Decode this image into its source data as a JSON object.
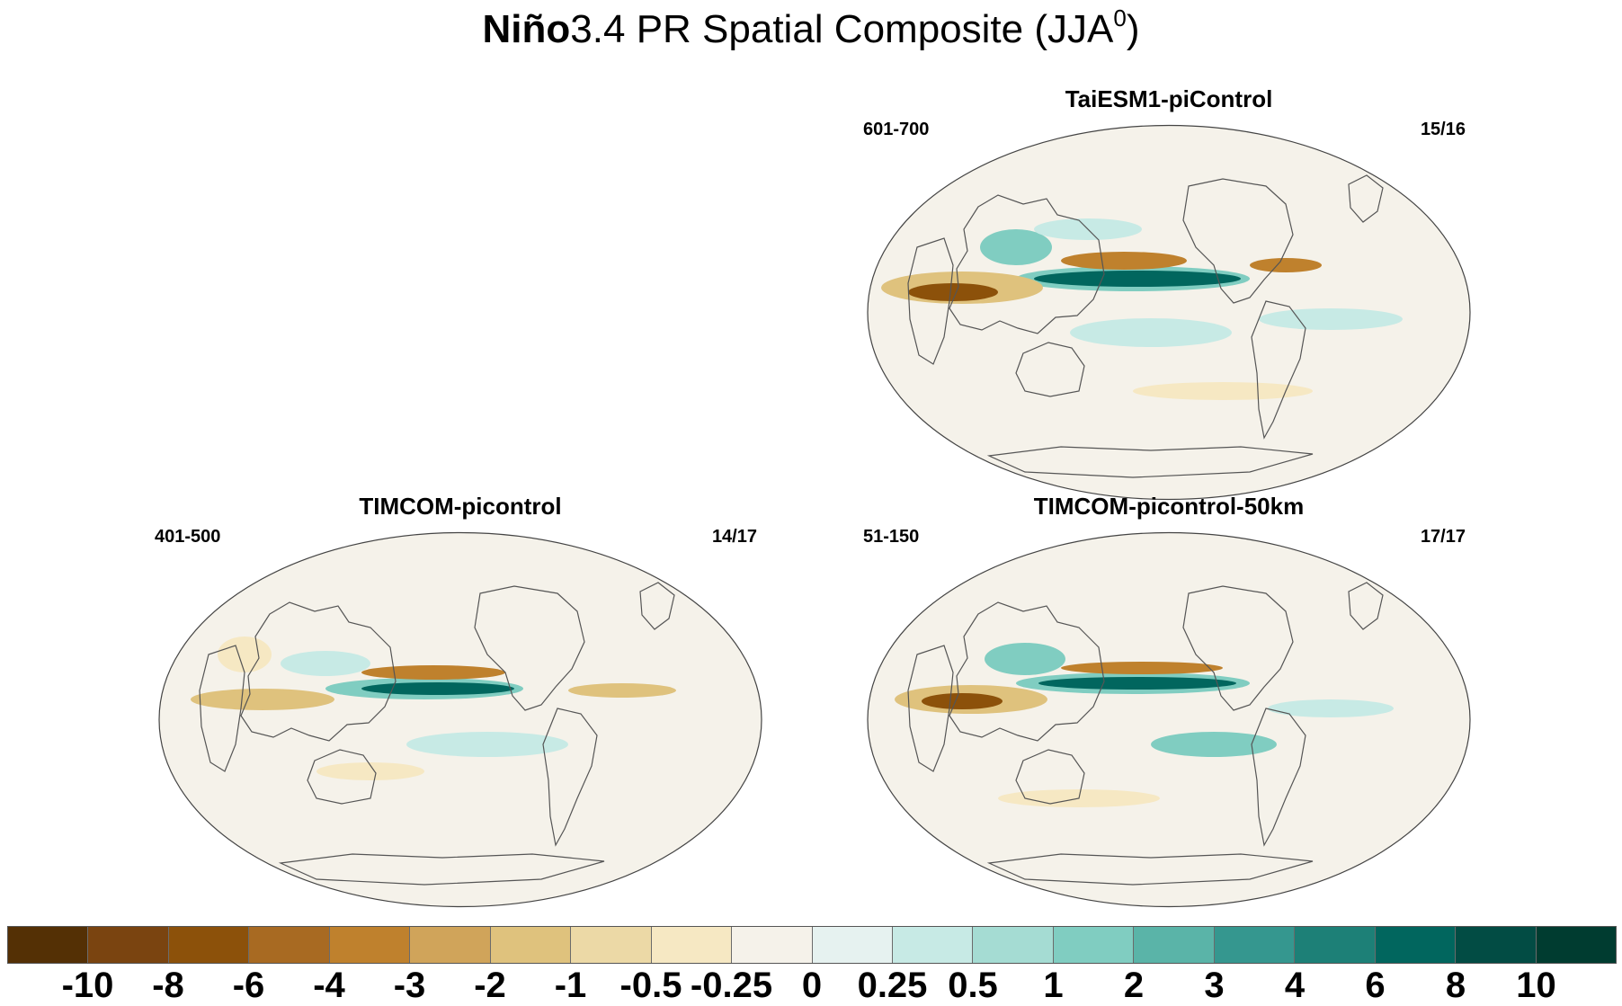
{
  "title": {
    "bold_part": "Niño",
    "rest": "3.4 PR Spatial Composite (JJA",
    "superscript": "0",
    "close": ")"
  },
  "panels": [
    {
      "id": "taiesm",
      "title": "TaiESM1-piControl",
      "years": "601-700",
      "count": "15/16"
    },
    {
      "id": "timcom",
      "title": "TIMCOM-picontrol",
      "years": "401-500",
      "count": "14/17"
    },
    {
      "id": "timcom50",
      "title": "TIMCOM-picontrol-50km",
      "years": "51-150",
      "count": "17/17"
    }
  ],
  "colorbar": {
    "labels": [
      "-10",
      "-8",
      "-6",
      "-4",
      "-3",
      "-2",
      "-1",
      "-0.5",
      "-0.25",
      "0",
      "0.25",
      "0.5",
      "1",
      "2",
      "3",
      "4",
      "6",
      "8",
      "10"
    ],
    "colors": [
      "#543005",
      "#7a4410",
      "#8c510a",
      "#a86a22",
      "#bf812d",
      "#d0a45a",
      "#dfc27d",
      "#ecd9a6",
      "#f6e8c3",
      "#f5f2ea",
      "#e6f2f0",
      "#c7eae5",
      "#a5dcd3",
      "#80cdc1",
      "#5ab4a8",
      "#35978f",
      "#1d8077",
      "#01665e",
      "#024c44",
      "#003c30"
    ]
  }
}
